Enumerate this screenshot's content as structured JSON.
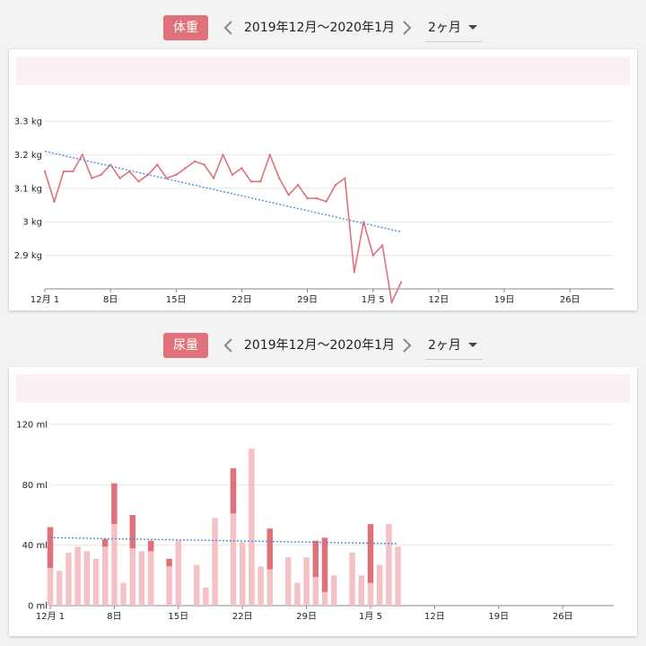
{
  "colors": {
    "accent": "#e0707a",
    "line": "#e0707a",
    "bar_dark": "#e0707a",
    "bar_light": "#f4c1c5",
    "trend": "#4a90d9",
    "grid": "#e6e6e6",
    "axis": "#888888",
    "summary_band": "#fdf0f2"
  },
  "sections": [
    {
      "badge": "体重",
      "period": "2019年12月〜2020年1月",
      "range": "2ヶ月",
      "prev_icon": "chevron-left-icon",
      "next_icon": "chevron-right-icon",
      "dropdown_icon": "caret-down-icon"
    },
    {
      "badge": "尿量",
      "period": "2019年12月〜2020年1月",
      "range": "2ヶ月",
      "prev_icon": "chevron-left-icon",
      "next_icon": "chevron-right-icon",
      "dropdown_icon": "caret-down-icon"
    }
  ],
  "chart_data": [
    {
      "type": "line",
      "title": "",
      "xlabel": "",
      "ylabel": "",
      "x_range": [
        "2019-12-01",
        "2020-01-31"
      ],
      "ylim": [
        2.8,
        3.3
      ],
      "y_ticks": [
        2.9,
        3.0,
        3.1,
        3.2,
        3.3
      ],
      "y_tick_labels": [
        "2.9 kg",
        "3 kg",
        "3.1 kg",
        "3.2 kg",
        "3.3 kg"
      ],
      "x_tick_labels": [
        "12月 1",
        "8日",
        "15日",
        "22日",
        "29日",
        "1月 5",
        "12日",
        "19日",
        "26日"
      ],
      "grid": true,
      "series": [
        {
          "values": [
            {
              "x": "2019-12-01",
              "y": 3.15
            },
            {
              "x": "2019-12-02",
              "y": 3.06
            },
            {
              "x": "2019-12-03",
              "y": 3.15
            },
            {
              "x": "2019-12-04",
              "y": 3.15
            },
            {
              "x": "2019-12-05",
              "y": 3.2
            },
            {
              "x": "2019-12-06",
              "y": 3.13
            },
            {
              "x": "2019-12-07",
              "y": 3.14
            },
            {
              "x": "2019-12-08",
              "y": 3.17
            },
            {
              "x": "2019-12-09",
              "y": 3.13
            },
            {
              "x": "2019-12-10",
              "y": 3.15
            },
            {
              "x": "2019-12-11",
              "y": 3.12
            },
            {
              "x": "2019-12-12",
              "y": 3.14
            },
            {
              "x": "2019-12-13",
              "y": 3.17
            },
            {
              "x": "2019-12-14",
              "y": 3.13
            },
            {
              "x": "2019-12-15",
              "y": 3.14
            },
            {
              "x": "2019-12-16",
              "y": 3.16
            },
            {
              "x": "2019-12-17",
              "y": 3.18
            },
            {
              "x": "2019-12-18",
              "y": 3.17
            },
            {
              "x": "2019-12-19",
              "y": 3.13
            },
            {
              "x": "2019-12-20",
              "y": 3.2
            },
            {
              "x": "2019-12-21",
              "y": 3.14
            },
            {
              "x": "2019-12-22",
              "y": 3.16
            },
            {
              "x": "2019-12-23",
              "y": 3.12
            },
            {
              "x": "2019-12-24",
              "y": 3.12
            },
            {
              "x": "2019-12-25",
              "y": 3.2
            },
            {
              "x": "2019-12-26",
              "y": 3.13
            },
            {
              "x": "2019-12-27",
              "y": 3.08
            },
            {
              "x": "2019-12-28",
              "y": 3.11
            },
            {
              "x": "2019-12-29",
              "y": 3.07
            },
            {
              "x": "2019-12-30",
              "y": 3.07
            },
            {
              "x": "2019-12-31",
              "y": 3.06
            },
            {
              "x": "2020-01-01",
              "y": 3.11
            },
            {
              "x": "2020-01-02",
              "y": 3.13
            },
            {
              "x": "2020-01-03",
              "y": 2.85
            },
            {
              "x": "2020-01-04",
              "y": 3.0
            },
            {
              "x": "2020-01-05",
              "y": 2.9
            },
            {
              "x": "2020-01-06",
              "y": 2.93
            },
            {
              "x": "2020-01-07",
              "y": 2.76
            },
            {
              "x": "2020-01-08",
              "y": 2.82
            }
          ]
        }
      ],
      "trend": {
        "x": [
          "2019-12-01",
          "2020-01-08"
        ],
        "y": [
          3.21,
          2.97
        ]
      }
    },
    {
      "type": "bar",
      "stacked": true,
      "title": "",
      "xlabel": "",
      "ylabel": "",
      "x_range": [
        "2019-12-01",
        "2020-01-31"
      ],
      "ylim": [
        0,
        120
      ],
      "y_ticks": [
        0,
        40,
        80,
        120
      ],
      "y_tick_labels": [
        "0 ml",
        "40 ml",
        "80 ml",
        "120 ml"
      ],
      "x_tick_labels": [
        "12月 1",
        "8日",
        "15日",
        "22日",
        "29日",
        "1月 5",
        "12日",
        "19日",
        "26日"
      ],
      "grid": true,
      "values": [
        {
          "x": "2019-12-01",
          "light": 25,
          "dark": 27
        },
        {
          "x": "2019-12-02",
          "light": 23,
          "dark": 0
        },
        {
          "x": "2019-12-03",
          "light": 35,
          "dark": 0
        },
        {
          "x": "2019-12-04",
          "light": 39,
          "dark": 0
        },
        {
          "x": "2019-12-05",
          "light": 36,
          "dark": 0
        },
        {
          "x": "2019-12-06",
          "light": 31,
          "dark": 0
        },
        {
          "x": "2019-12-07",
          "light": 39,
          "dark": 5
        },
        {
          "x": "2019-12-08",
          "light": 54,
          "dark": 27
        },
        {
          "x": "2019-12-09",
          "light": 15,
          "dark": 0
        },
        {
          "x": "2019-12-10",
          "light": 38,
          "dark": 22
        },
        {
          "x": "2019-12-11",
          "light": 36,
          "dark": 0
        },
        {
          "x": "2019-12-12",
          "light": 36,
          "dark": 7
        },
        {
          "x": "2019-12-14",
          "light": 26,
          "dark": 5
        },
        {
          "x": "2019-12-15",
          "light": 43,
          "dark": 0
        },
        {
          "x": "2019-12-17",
          "light": 27,
          "dark": 0
        },
        {
          "x": "2019-12-18",
          "light": 12,
          "dark": 0
        },
        {
          "x": "2019-12-19",
          "light": 58,
          "dark": 0
        },
        {
          "x": "2019-12-21",
          "light": 61,
          "dark": 30
        },
        {
          "x": "2019-12-22",
          "light": 42,
          "dark": 0
        },
        {
          "x": "2019-12-23",
          "light": 104,
          "dark": 0
        },
        {
          "x": "2019-12-24",
          "light": 26,
          "dark": 0
        },
        {
          "x": "2019-12-25",
          "light": 24,
          "dark": 27
        },
        {
          "x": "2019-12-27",
          "light": 32,
          "dark": 0
        },
        {
          "x": "2019-12-28",
          "light": 15,
          "dark": 0
        },
        {
          "x": "2019-12-29",
          "light": 32,
          "dark": 0
        },
        {
          "x": "2019-12-30",
          "light": 19,
          "dark": 24
        },
        {
          "x": "2019-12-31",
          "light": 9,
          "dark": 36
        },
        {
          "x": "2020-01-01",
          "light": 20,
          "dark": 0
        },
        {
          "x": "2020-01-03",
          "light": 35,
          "dark": 0
        },
        {
          "x": "2020-01-04",
          "light": 20,
          "dark": 0
        },
        {
          "x": "2020-01-05",
          "light": 15,
          "dark": 39
        },
        {
          "x": "2020-01-06",
          "light": 27,
          "dark": 0
        },
        {
          "x": "2020-01-07",
          "light": 54,
          "dark": 0
        },
        {
          "x": "2020-01-08",
          "light": 39,
          "dark": 0
        }
      ],
      "trend": {
        "x": [
          "2019-12-01",
          "2020-01-08"
        ],
        "y": [
          45,
          41
        ]
      }
    }
  ]
}
